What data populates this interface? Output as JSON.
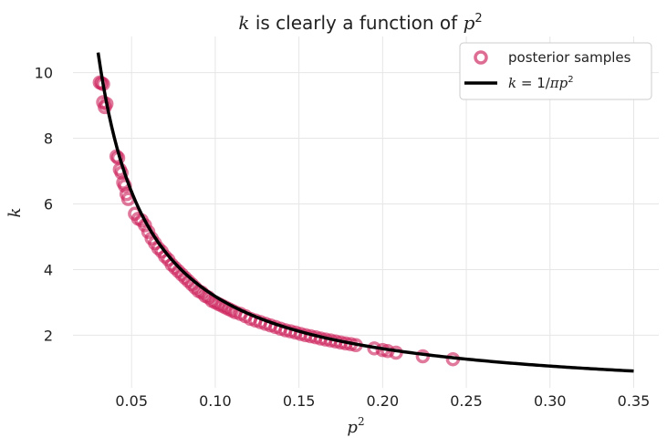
{
  "chart_data": {
    "type": "scatter",
    "title": {
      "italic_var": "k",
      "text": " is clearly a function of ",
      "var": "p",
      "sup": "2"
    },
    "xlabel": {
      "var": "p",
      "sup": "2"
    },
    "ylabel": "k",
    "xlim": [
      0.015,
      0.365
    ],
    "ylim": [
      0.4,
      11.1
    ],
    "x_ticks": [
      "0.05",
      "0.10",
      "0.15",
      "0.20",
      "0.25",
      "0.30",
      "0.35"
    ],
    "y_ticks": [
      "2",
      "4",
      "6",
      "8",
      "10"
    ],
    "grid": true,
    "legend_position": "top-right",
    "colors": {
      "scatter": "#cc1f5a",
      "curve": "#000000",
      "grid": "#e6e6e6"
    },
    "series": [
      {
        "name": "posterior samples",
        "kind": "scatter",
        "marker": "hollow-circle",
        "points": [
          [
            0.031,
            9.7
          ],
          [
            0.032,
            9.68
          ],
          [
            0.033,
            9.65
          ],
          [
            0.033,
            9.1
          ],
          [
            0.034,
            8.95
          ],
          [
            0.035,
            9.05
          ],
          [
            0.041,
            7.45
          ],
          [
            0.042,
            7.4
          ],
          [
            0.043,
            7.05
          ],
          [
            0.044,
            6.95
          ],
          [
            0.045,
            6.65
          ],
          [
            0.046,
            6.55
          ],
          [
            0.047,
            6.3
          ],
          [
            0.048,
            6.15
          ],
          [
            0.052,
            5.7
          ],
          [
            0.054,
            5.55
          ],
          [
            0.056,
            5.5
          ],
          [
            0.058,
            5.35
          ],
          [
            0.06,
            5.15
          ],
          [
            0.062,
            4.95
          ],
          [
            0.064,
            4.8
          ],
          [
            0.066,
            4.65
          ],
          [
            0.068,
            4.55
          ],
          [
            0.07,
            4.4
          ],
          [
            0.072,
            4.3
          ],
          [
            0.074,
            4.15
          ],
          [
            0.076,
            4.05
          ],
          [
            0.078,
            3.95
          ],
          [
            0.08,
            3.85
          ],
          [
            0.082,
            3.75
          ],
          [
            0.084,
            3.65
          ],
          [
            0.086,
            3.55
          ],
          [
            0.088,
            3.45
          ],
          [
            0.09,
            3.35
          ],
          [
            0.092,
            3.3
          ],
          [
            0.094,
            3.2
          ],
          [
            0.096,
            3.15
          ],
          [
            0.098,
            3.05
          ],
          [
            0.1,
            3.0
          ],
          [
            0.102,
            2.95
          ],
          [
            0.104,
            2.9
          ],
          [
            0.106,
            2.85
          ],
          [
            0.108,
            2.8
          ],
          [
            0.11,
            2.75
          ],
          [
            0.112,
            2.7
          ],
          [
            0.115,
            2.65
          ],
          [
            0.118,
            2.58
          ],
          [
            0.121,
            2.5
          ],
          [
            0.124,
            2.45
          ],
          [
            0.127,
            2.4
          ],
          [
            0.13,
            2.35
          ],
          [
            0.133,
            2.3
          ],
          [
            0.136,
            2.25
          ],
          [
            0.139,
            2.2
          ],
          [
            0.142,
            2.15
          ],
          [
            0.145,
            2.12
          ],
          [
            0.148,
            2.08
          ],
          [
            0.151,
            2.04
          ],
          [
            0.154,
            2.0
          ],
          [
            0.157,
            1.97
          ],
          [
            0.16,
            1.94
          ],
          [
            0.163,
            1.9
          ],
          [
            0.166,
            1.87
          ],
          [
            0.169,
            1.84
          ],
          [
            0.172,
            1.81
          ],
          [
            0.175,
            1.78
          ],
          [
            0.178,
            1.75
          ],
          [
            0.181,
            1.73
          ],
          [
            0.184,
            1.7
          ],
          [
            0.195,
            1.6
          ],
          [
            0.2,
            1.55
          ],
          [
            0.203,
            1.52
          ],
          [
            0.208,
            1.47
          ],
          [
            0.224,
            1.36
          ],
          [
            0.242,
            1.27
          ]
        ]
      },
      {
        "name": "k = 1/πp²",
        "kind": "line",
        "function": "1/(pi*x)",
        "x_range": [
          0.03,
          0.35
        ]
      }
    ]
  }
}
